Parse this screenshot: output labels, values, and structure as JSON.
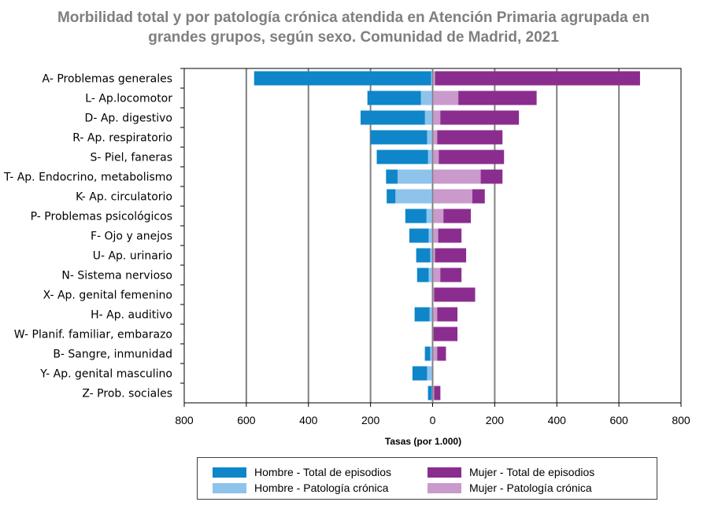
{
  "title": {
    "line1": "Morbilidad total y por patología crónica atendida en Atención Primaria agrupada en",
    "line2": "grandes grupos, según sexo. Comunidad de Madrid, 2021"
  },
  "colors": {
    "hombre_total": "#0e86c9",
    "hombre_cronica": "#8ec3ec",
    "mujer_total": "#8b2d8f",
    "mujer_cronica": "#c99acb",
    "gridline": "#808080",
    "axis": "#000000"
  },
  "legend": [
    {
      "label": "Hombre - Total de episodios",
      "color_key": "hombre_total"
    },
    {
      "label": "Hombre - Patología crónica",
      "color_key": "hombre_cronica"
    },
    {
      "label": "Mujer - Total de episodios",
      "color_key": "mujer_total"
    },
    {
      "label": "Mujer - Patología crónica",
      "color_key": "mujer_cronica"
    }
  ],
  "chart_data": {
    "type": "bar",
    "orientation": "horizontal",
    "layout": "population-pyramid",
    "title": "Morbilidad total y por patología crónica atendida en Atención Primaria agrupada en grandes grupos, según sexo. Comunidad de Madrid, 2021",
    "xlabel": "Tasas (por 1.000)",
    "xlim": [
      -800,
      800
    ],
    "xticks": [
      -800,
      -600,
      -400,
      -200,
      0,
      200,
      400,
      600,
      800
    ],
    "xtick_labels": [
      "800",
      "600",
      "400",
      "200",
      "0",
      "200",
      "400",
      "600",
      "800"
    ],
    "grid": true,
    "legend_position": "bottom",
    "categories": [
      "A- Problemas generales",
      "L- Ap.locomotor",
      "D- Ap. digestivo",
      "R- Ap. respiratorio",
      "S- Piel, faneras",
      "T- Ap. Endocrino, metabolismo",
      "K- Ap. circulatorio",
      "P- Problemas psicológicos",
      "F- Ojo y anejos",
      "U- Ap. urinario",
      "N- Sistema nervioso",
      "X- Ap. genital femenino",
      "H- Ap. auditivo",
      "W- Planif. familiar, embarazo",
      "B- Sangre, inmunidad",
      "Y- Ap. genital masculino",
      "Z- Prob. sociales"
    ],
    "series": [
      {
        "name": "Hombre - Total de episodios",
        "side": "left",
        "values": [
          575,
          210,
          232,
          200,
          180,
          150,
          148,
          88,
          75,
          53,
          50,
          0,
          58,
          0,
          25,
          65,
          15
        ]
      },
      {
        "name": "Hombre - Patología crónica",
        "side": "left",
        "values": [
          5,
          38,
          25,
          18,
          15,
          113,
          120,
          20,
          13,
          8,
          13,
          0,
          10,
          0,
          8,
          18,
          3
        ]
      },
      {
        "name": "Mujer - Total de episodios",
        "side": "right",
        "values": [
          668,
          335,
          278,
          225,
          230,
          225,
          168,
          123,
          93,
          108,
          93,
          137,
          80,
          80,
          43,
          0,
          25
        ]
      },
      {
        "name": "Mujer - Patología crónica",
        "side": "right",
        "values": [
          8,
          83,
          25,
          15,
          20,
          155,
          128,
          35,
          18,
          8,
          25,
          5,
          15,
          3,
          15,
          0,
          5
        ]
      }
    ]
  }
}
